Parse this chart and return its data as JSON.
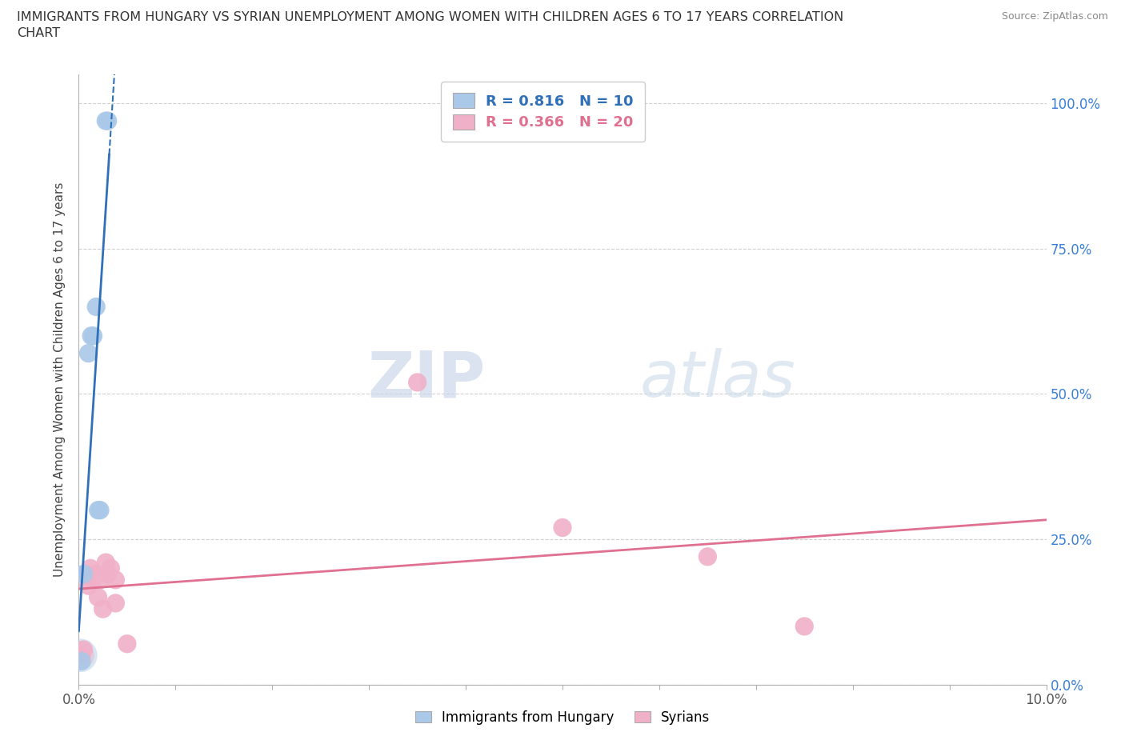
{
  "title_line1": "IMMIGRANTS FROM HUNGARY VS SYRIAN UNEMPLOYMENT AMONG WOMEN WITH CHILDREN AGES 6 TO 17 YEARS CORRELATION",
  "title_line2": "CHART",
  "source": "Source: ZipAtlas.com",
  "ylabel": "Unemployment Among Women with Children Ages 6 to 17 years",
  "xlim": [
    0.0,
    0.1
  ],
  "ylim": [
    0.0,
    1.05
  ],
  "yticks": [
    0.0,
    0.25,
    0.5,
    0.75,
    1.0
  ],
  "ytick_labels": [
    "0.0%",
    "25.0%",
    "50.0%",
    "75.0%",
    "100.0%"
  ],
  "hungary_R": 0.816,
  "hungary_N": 10,
  "syrian_R": 0.366,
  "syrian_N": 20,
  "hungary_color": "#aac8e8",
  "hungary_line_color": "#3070b8",
  "syrian_color": "#f0b0c8",
  "syrian_line_color": "#e07090",
  "legend_hungary_label": "Immigrants from Hungary",
  "legend_syrian_label": "Syrians",
  "watermark_zip": "ZIP",
  "watermark_atlas": "atlas",
  "hungary_x": [
    0.0003,
    0.0005,
    0.001,
    0.0013,
    0.0015,
    0.0018,
    0.002,
    0.0022,
    0.0028,
    0.003
  ],
  "hungary_y": [
    0.04,
    0.19,
    0.57,
    0.6,
    0.6,
    0.65,
    0.3,
    0.3,
    0.97,
    0.97
  ],
  "syrian_x": [
    0.0003,
    0.0005,
    0.0007,
    0.001,
    0.0012,
    0.0014,
    0.0017,
    0.002,
    0.0022,
    0.0025,
    0.0028,
    0.003,
    0.0033,
    0.0038,
    0.0038,
    0.005,
    0.035,
    0.05,
    0.065,
    0.075
  ],
  "syrian_y": [
    0.05,
    0.06,
    0.19,
    0.17,
    0.2,
    0.18,
    0.19,
    0.15,
    0.18,
    0.13,
    0.21,
    0.19,
    0.2,
    0.18,
    0.14,
    0.07,
    0.52,
    0.27,
    0.22,
    0.1
  ]
}
